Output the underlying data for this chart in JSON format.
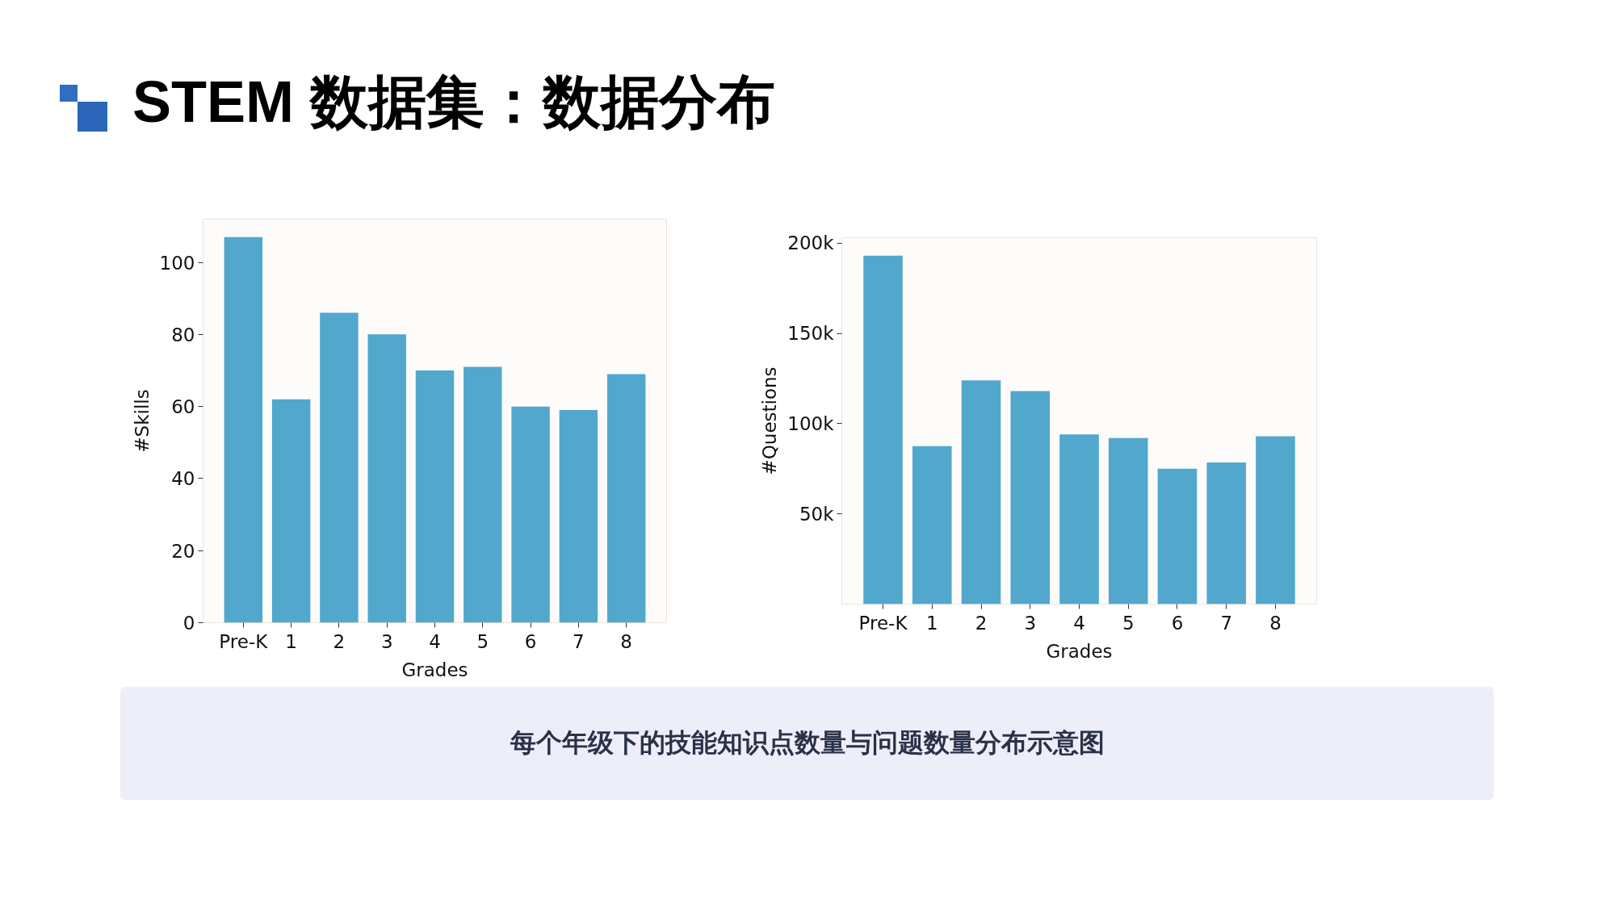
{
  "chart_data": [
    {
      "type": "bar",
      "title": "STEM 数据集：数据分布",
      "categories": [
        "Pre-K",
        "1",
        "2",
        "3",
        "4",
        "5",
        "6",
        "7",
        "8"
      ],
      "values": [
        107,
        62,
        86,
        80,
        70,
        71,
        60,
        59,
        69
      ],
      "color": "#52a7cd",
      "xlabel": "Grades",
      "ylabel": "#Skills",
      "ylim": [
        0,
        112
      ],
      "yticks": [
        0,
        20,
        40,
        60,
        80,
        100
      ]
    },
    {
      "type": "bar",
      "categories": [
        "Pre-K",
        "1",
        "2",
        "3",
        "4",
        "5",
        "6",
        "7",
        "8"
      ],
      "values": [
        193000,
        87500,
        124000,
        118000,
        94000,
        92000,
        75000,
        78500,
        93000
      ],
      "color": "#52a7cd",
      "xlabel": "Grades",
      "ylabel": "#Questions",
      "ylim": [
        0,
        203000
      ],
      "yticks": [
        {
          "value": 50000,
          "label": "50k"
        },
        {
          "value": 100000,
          "label": "100k"
        },
        {
          "value": 150000,
          "label": "150k"
        },
        {
          "value": 200000,
          "label": "200k"
        }
      ],
      "annotations": [
        "每个年级下的技能知识点数量与问题数量分布示意图"
      ]
    }
  ]
}
